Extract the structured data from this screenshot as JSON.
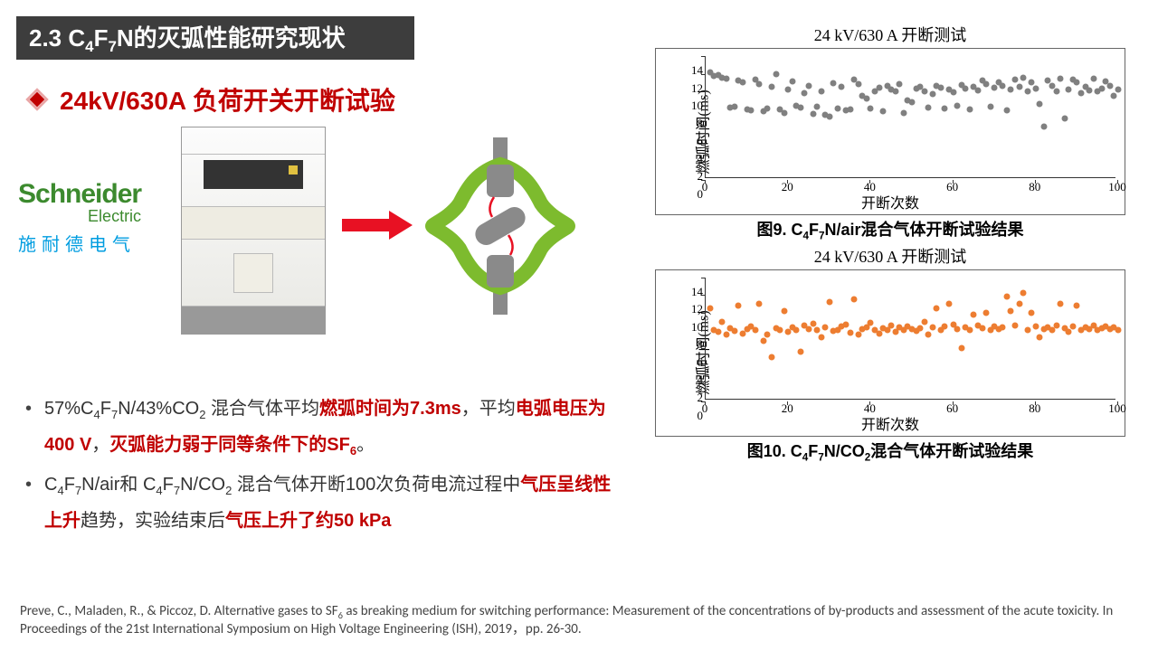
{
  "title_html": "2.3 C<sub>4</sub>F<sub>7</sub>N的灭弧性能研究现状",
  "subtitle": "24kV/630A 负荷开关开断试验",
  "brand": {
    "name": "Schneider",
    "sub": "Electric",
    "cn": "施耐德电气"
  },
  "bullet1_html": "57%C<sub>4</sub>F<sub>7</sub>N/43%CO<sub>2</sub> 混合气体平均<span class='hl-red'>燃弧时间为7.3ms</span>，平均<span class='hl-red'>电弧电压为400 V</span>，<span class='hl-red'>灭弧能力弱于同等条件下的SF<sub>6</sub></span>。",
  "bullet2_html": "C<sub>4</sub>F<sub>7</sub>N/air和 C<sub>4</sub>F<sub>7</sub>N/CO<sub>2</sub> 混合气体开断100次负荷电流过程中<span class='hl-red'>气压呈线性上升</span>趋势，实验结束后<span class='hl-red'>气压上升了约50 kPa</span>",
  "chart_common": {
    "title": "24 kV/630 A 开断测试",
    "ylabel": "燃弧时间(ms)",
    "xlabel": "开断次数",
    "xlim": [
      0,
      100
    ],
    "ylim": [
      0,
      14
    ],
    "xticks": [
      0,
      20,
      40,
      60,
      80,
      100
    ],
    "yticks": [
      0,
      2,
      4,
      6,
      8,
      10,
      12,
      14
    ]
  },
  "chart1": {
    "caption_html": "图9. C<sub>4</sub>F<sub>7</sub>N/air混合气体开断试验结果",
    "color": "#808080",
    "points": [
      [
        1,
        12.2
      ],
      [
        2,
        11.8
      ],
      [
        3,
        11.9
      ],
      [
        4,
        11.5
      ],
      [
        5,
        11.4
      ],
      [
        6,
        8.2
      ],
      [
        7,
        8.3
      ],
      [
        8,
        11.2
      ],
      [
        9,
        11.0
      ],
      [
        10,
        8.0
      ],
      [
        11,
        7.9
      ],
      [
        12,
        11.3
      ],
      [
        13,
        10.8
      ],
      [
        14,
        7.8
      ],
      [
        15,
        8.1
      ],
      [
        16,
        10.5
      ],
      [
        17,
        12.0
      ],
      [
        18,
        8.0
      ],
      [
        19,
        7.6
      ],
      [
        20,
        10.2
      ],
      [
        21,
        11.1
      ],
      [
        22,
        8.4
      ],
      [
        23,
        8.2
      ],
      [
        24,
        9.8
      ],
      [
        25,
        10.6
      ],
      [
        26,
        7.5
      ],
      [
        27,
        8.3
      ],
      [
        28,
        10.0
      ],
      [
        29,
        7.4
      ],
      [
        30,
        7.2
      ],
      [
        31,
        10.9
      ],
      [
        32,
        8.1
      ],
      [
        33,
        10.5
      ],
      [
        34,
        7.9
      ],
      [
        35,
        8.0
      ],
      [
        36,
        11.3
      ],
      [
        37,
        10.8
      ],
      [
        38,
        9.5
      ],
      [
        39,
        9.2
      ],
      [
        40,
        8.1
      ],
      [
        41,
        10.0
      ],
      [
        42,
        10.4
      ],
      [
        43,
        7.8
      ],
      [
        44,
        10.6
      ],
      [
        45,
        10.2
      ],
      [
        46,
        10.0
      ],
      [
        47,
        10.8
      ],
      [
        48,
        7.6
      ],
      [
        49,
        9.0
      ],
      [
        50,
        8.8
      ],
      [
        51,
        10.3
      ],
      [
        52,
        10.5
      ],
      [
        53,
        10.0
      ],
      [
        54,
        8.2
      ],
      [
        55,
        9.7
      ],
      [
        56,
        10.6
      ],
      [
        57,
        10.4
      ],
      [
        58,
        8.1
      ],
      [
        59,
        10.2
      ],
      [
        60,
        9.9
      ],
      [
        61,
        8.4
      ],
      [
        62,
        10.7
      ],
      [
        63,
        10.3
      ],
      [
        64,
        8.0
      ],
      [
        65,
        10.5
      ],
      [
        66,
        10.1
      ],
      [
        67,
        11.2
      ],
      [
        68,
        10.8
      ],
      [
        69,
        8.3
      ],
      [
        70,
        10.4
      ],
      [
        71,
        11.0
      ],
      [
        72,
        10.6
      ],
      [
        73,
        7.9
      ],
      [
        74,
        10.2
      ],
      [
        75,
        11.3
      ],
      [
        76,
        10.5
      ],
      [
        77,
        11.5
      ],
      [
        78,
        10.0
      ],
      [
        79,
        11.0
      ],
      [
        80,
        10.3
      ],
      [
        81,
        8.6
      ],
      [
        82,
        6.0
      ],
      [
        83,
        11.2
      ],
      [
        84,
        10.6
      ],
      [
        85,
        10.0
      ],
      [
        86,
        11.4
      ],
      [
        87,
        7.0
      ],
      [
        88,
        10.2
      ],
      [
        89,
        11.3
      ],
      [
        90,
        11.0
      ],
      [
        91,
        9.8
      ],
      [
        92,
        10.5
      ],
      [
        93,
        10.1
      ],
      [
        94,
        11.4
      ],
      [
        95,
        10.0
      ],
      [
        96,
        10.3
      ],
      [
        97,
        11.1
      ],
      [
        98,
        10.6
      ],
      [
        99,
        9.5
      ],
      [
        100,
        10.2
      ]
    ]
  },
  "chart2": {
    "caption_html": "图10. C<sub>4</sub>F<sub>7</sub>N/CO<sub>2</sub>混合气体开断试验结果",
    "color": "#ed7d31",
    "points": [
      [
        1,
        10.5
      ],
      [
        2,
        8.0
      ],
      [
        3,
        7.8
      ],
      [
        4,
        9.0
      ],
      [
        5,
        7.5
      ],
      [
        6,
        8.2
      ],
      [
        7,
        7.9
      ],
      [
        8,
        10.8
      ],
      [
        9,
        7.6
      ],
      [
        10,
        8.1
      ],
      [
        11,
        8.4
      ],
      [
        12,
        8.0
      ],
      [
        13,
        11.0
      ],
      [
        14,
        6.8
      ],
      [
        15,
        7.5
      ],
      [
        16,
        5.0
      ],
      [
        17,
        8.2
      ],
      [
        18,
        8.0
      ],
      [
        19,
        10.2
      ],
      [
        20,
        7.8
      ],
      [
        21,
        8.3
      ],
      [
        22,
        8.0
      ],
      [
        23,
        5.6
      ],
      [
        24,
        8.5
      ],
      [
        25,
        8.1
      ],
      [
        26,
        8.7
      ],
      [
        27,
        8.0
      ],
      [
        28,
        7.2
      ],
      [
        29,
        8.3
      ],
      [
        30,
        11.2
      ],
      [
        31,
        7.9
      ],
      [
        32,
        8.0
      ],
      [
        33,
        8.4
      ],
      [
        34,
        8.6
      ],
      [
        35,
        7.7
      ],
      [
        36,
        11.5
      ],
      [
        37,
        7.5
      ],
      [
        38,
        8.1
      ],
      [
        39,
        8.3
      ],
      [
        40,
        8.8
      ],
      [
        41,
        8.0
      ],
      [
        42,
        7.6
      ],
      [
        43,
        8.2
      ],
      [
        44,
        8.0
      ],
      [
        45,
        8.5
      ],
      [
        46,
        7.8
      ],
      [
        47,
        8.3
      ],
      [
        48,
        8.0
      ],
      [
        49,
        8.4
      ],
      [
        50,
        8.1
      ],
      [
        51,
        7.9
      ],
      [
        52,
        8.2
      ],
      [
        53,
        9.0
      ],
      [
        54,
        7.5
      ],
      [
        55,
        8.3
      ],
      [
        56,
        10.5
      ],
      [
        57,
        8.0
      ],
      [
        58,
        8.4
      ],
      [
        59,
        11.0
      ],
      [
        60,
        8.6
      ],
      [
        61,
        8.1
      ],
      [
        62,
        6.0
      ],
      [
        63,
        8.3
      ],
      [
        64,
        8.0
      ],
      [
        65,
        9.8
      ],
      [
        66,
        8.5
      ],
      [
        67,
        8.2
      ],
      [
        68,
        10.0
      ],
      [
        69,
        8.0
      ],
      [
        70,
        8.4
      ],
      [
        71,
        8.1
      ],
      [
        72,
        8.3
      ],
      [
        73,
        11.8
      ],
      [
        74,
        10.2
      ],
      [
        75,
        8.5
      ],
      [
        76,
        11.0
      ],
      [
        77,
        12.2
      ],
      [
        78,
        8.0
      ],
      [
        79,
        10.0
      ],
      [
        80,
        8.4
      ],
      [
        81,
        7.2
      ],
      [
        82,
        8.1
      ],
      [
        83,
        8.3
      ],
      [
        84,
        8.0
      ],
      [
        85,
        8.5
      ],
      [
        86,
        11.0
      ],
      [
        87,
        8.2
      ],
      [
        88,
        7.8
      ],
      [
        89,
        8.4
      ],
      [
        90,
        10.8
      ],
      [
        91,
        8.0
      ],
      [
        92,
        8.3
      ],
      [
        93,
        8.1
      ],
      [
        94,
        8.5
      ],
      [
        95,
        8.0
      ],
      [
        96,
        8.2
      ],
      [
        97,
        8.4
      ],
      [
        98,
        8.1
      ],
      [
        99,
        8.3
      ],
      [
        100,
        8.0
      ]
    ]
  },
  "citation_html": "Preve, C., Maladen, R., & Piccoz, D. Alternative gases to SF<sub>6</sub> as breaking medium for switching performance: Measurement of the concentrations of by-products and assessment of the acute toxicity. In Proceedings of the 21st International Symposium on High Voltage Engineering (ISH), 2019，pp. 26-30."
}
